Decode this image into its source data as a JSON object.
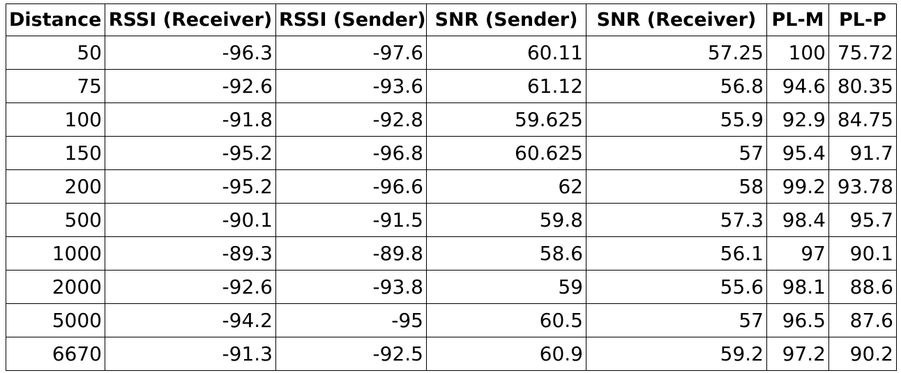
{
  "chart_data": {
    "type": "table",
    "columns": [
      "Distance",
      "RSSI (Receiver)",
      "RSSI (Sender)",
      "SNR (Sender)",
      "SNR (Receiver)",
      "PL-M",
      "PL-P"
    ],
    "rows": [
      [
        "50",
        "-96.3",
        "-97.6",
        "60.11",
        "57.25",
        "100",
        "75.72"
      ],
      [
        "75",
        "-92.6",
        "-93.6",
        "61.12",
        "56.8",
        "94.6",
        "80.35"
      ],
      [
        "100",
        "-91.8",
        "-92.8",
        "59.625",
        "55.9",
        "92.9",
        "84.75"
      ],
      [
        "150",
        "-95.2",
        "-96.8",
        "60.625",
        "57",
        "95.4",
        "91.7"
      ],
      [
        "200",
        "-95.2",
        "-96.6",
        "62",
        "58",
        "99.2",
        "93.78"
      ],
      [
        "500",
        "-90.1",
        "-91.5",
        "59.8",
        "57.3",
        "98.4",
        "95.7"
      ],
      [
        "1000",
        "-89.3",
        "-89.8",
        "58.6",
        "56.1",
        "97",
        "90.1"
      ],
      [
        "2000",
        "-92.6",
        "-93.8",
        "59",
        "55.6",
        "98.1",
        "88.6"
      ],
      [
        "5000",
        "-94.2",
        "-95",
        "60.5",
        "57",
        "96.5",
        "87.6"
      ],
      [
        "6670",
        "-91.3",
        "-92.5",
        "60.9",
        "59.2",
        "97.2",
        "90.2"
      ]
    ]
  }
}
